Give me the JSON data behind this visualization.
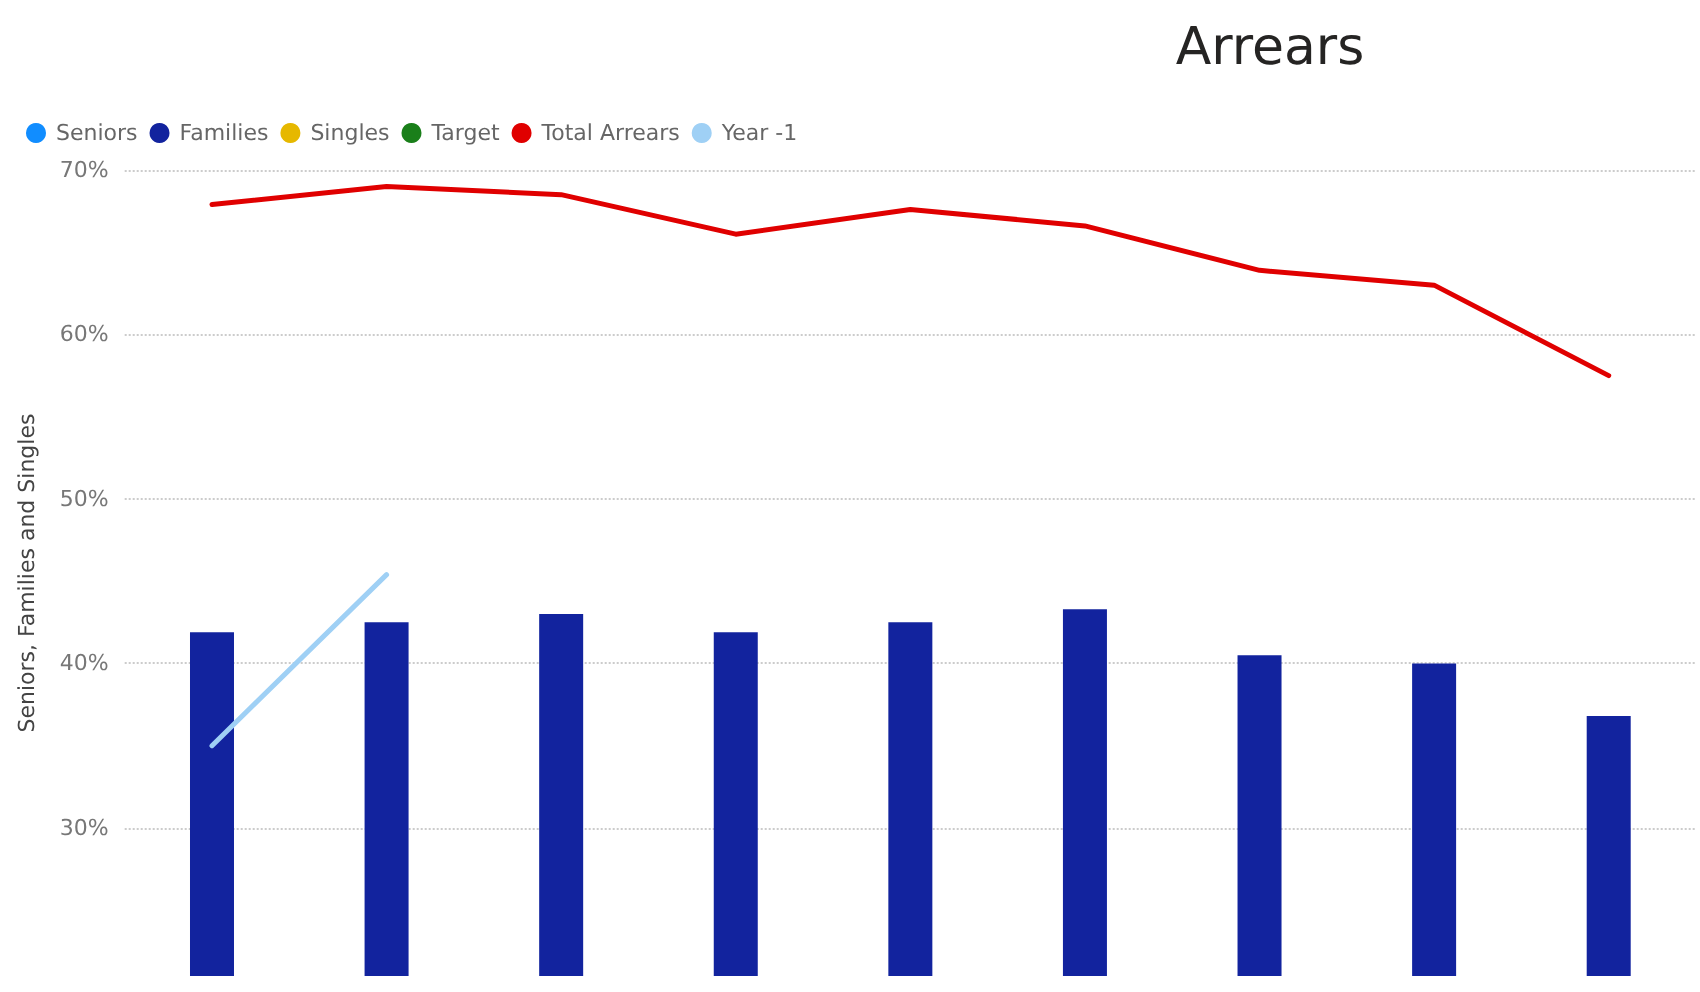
{
  "chart_data": {
    "type": "bar",
    "title": "Arrears",
    "ylabel": "Seniors, Families and Singles",
    "categories": [
      null,
      null,
      null,
      null,
      null,
      null,
      null,
      null,
      null
    ],
    "series": [
      {
        "name": "Seniors",
        "color": "#118dff",
        "values": [
          null,
          null,
          null,
          null,
          null,
          null,
          null,
          null,
          null
        ]
      },
      {
        "name": "Families",
        "color": "#12239e",
        "values": [
          41.9,
          42.5,
          43.0,
          41.9,
          42.5,
          43.3,
          40.5,
          40.0,
          36.8
        ]
      },
      {
        "name": "Singles",
        "color": "#e6b800",
        "values": [
          null,
          null,
          null,
          null,
          null,
          null,
          null,
          null,
          null
        ]
      },
      {
        "name": "Target",
        "type": "line",
        "color": "#1a7f1a",
        "values": [
          null,
          null,
          null,
          null,
          null,
          null,
          null,
          null,
          null
        ]
      },
      {
        "name": "Total Arrears",
        "type": "line",
        "color": "#e00000",
        "values": [
          67.9,
          69.0,
          68.5,
          66.1,
          67.6,
          66.6,
          63.9,
          63.0,
          57.5
        ]
      },
      {
        "name": "Year -1",
        "type": "line",
        "color": "#9fd0f5",
        "values": [
          35.0,
          45.4,
          null,
          null,
          null,
          null,
          null,
          null,
          null
        ]
      }
    ],
    "ylim": [
      21,
      70
    ],
    "yticks": [
      {
        "value": 30,
        "label": "30%"
      },
      {
        "value": 40,
        "label": "40%"
      },
      {
        "value": 50,
        "label": "50%"
      },
      {
        "value": 60,
        "label": "60%"
      },
      {
        "value": 70,
        "label": "70%"
      }
    ],
    "grid": "y",
    "legend": "top left",
    "marker": "none",
    "line_style": "solid"
  }
}
